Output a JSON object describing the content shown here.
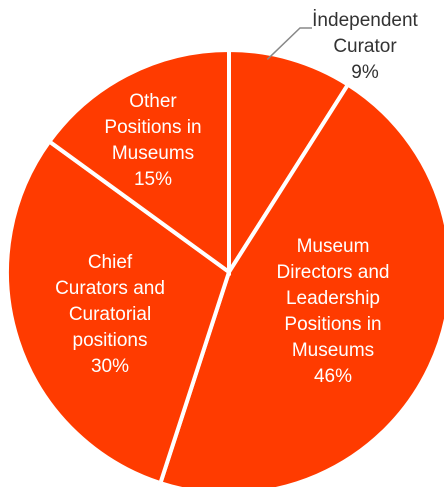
{
  "chart_data": {
    "type": "pie",
    "title": "",
    "colors": {
      "slice": "#FF3B00",
      "separator": "#ffffff",
      "outside_label": "#333333"
    },
    "slices": [
      {
        "label_lines": [
          "İndependent",
          "Curator"
        ],
        "value_text": "9%",
        "value": 9,
        "label_position": "outside"
      },
      {
        "label_lines": [
          "Museum",
          "Directors and",
          "Leadership",
          "Positions in",
          "Museums"
        ],
        "value_text": "46%",
        "value": 46,
        "label_position": "inside"
      },
      {
        "label_lines": [
          "Chief",
          "Curators and",
          "Curatorial",
          "positions"
        ],
        "value_text": "30%",
        "value": 30,
        "label_position": "inside"
      },
      {
        "label_lines": [
          "Other",
          "Positions in",
          "Museums"
        ],
        "value_text": "15%",
        "value": 15,
        "label_position": "inside"
      }
    ]
  }
}
